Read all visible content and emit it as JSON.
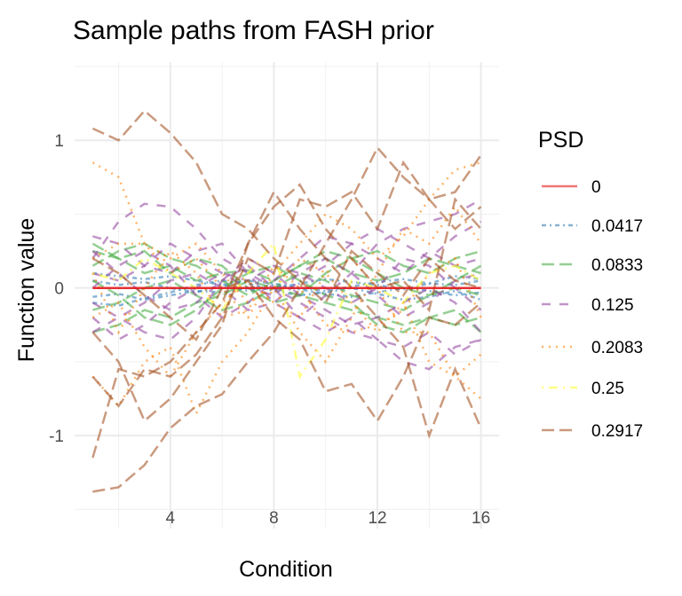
{
  "chart_data": {
    "type": "line",
    "title": "Sample paths from FASH prior",
    "xlabel": "Condition",
    "ylabel": "Function value",
    "xlim": [
      0.3,
      16.7
    ],
    "ylim": [
      -1.63,
      1.53
    ],
    "x_ticks": [
      4,
      8,
      12,
      16
    ],
    "x_tick_labels": [
      "4",
      "8",
      "12",
      "16"
    ],
    "y_ticks": [
      -1,
      0,
      1
    ],
    "y_tick_labels": [
      "-1",
      "0",
      "1"
    ],
    "grid": true,
    "x": [
      1,
      2,
      3,
      4,
      5,
      6,
      7,
      8,
      9,
      10,
      11,
      12,
      13,
      14,
      15,
      16
    ],
    "legend": {
      "title": "PSD",
      "placement": "right",
      "entries": [
        "0",
        "0.0417",
        "0.0833",
        "0.125",
        "0.2083",
        "0.25",
        "0.2917"
      ]
    },
    "colors": [
      "#E41A1C",
      "#377EB8",
      "#4DAF4A",
      "#984EA3",
      "#FF7F00",
      "#FFFF33",
      "#A65628"
    ],
    "dash_styles": [
      "solid",
      "dotted-dash",
      "long-dash",
      "dashed",
      "dotted",
      "dot-dash",
      "long-dash"
    ],
    "series": [
      {
        "name": "0",
        "paths": [
          [
            0,
            0,
            0,
            0,
            0,
            0,
            0,
            0,
            0,
            0,
            0,
            0,
            0,
            0,
            0,
            0
          ]
        ]
      },
      {
        "name": "0.0417",
        "paths": [
          [
            0.05,
            0.02,
            0.04,
            0.0,
            -0.03,
            0.02,
            0.05,
            0.03,
            0.0,
            -0.02,
            0.01,
            0.04,
            0.06,
            0.03,
            0.02,
            0.05
          ],
          [
            -0.06,
            -0.04,
            -0.08,
            -0.05,
            -0.02,
            -0.03,
            0.0,
            0.02,
            -0.01,
            -0.04,
            -0.06,
            -0.03,
            0.0,
            -0.02,
            -0.05,
            -0.03
          ],
          [
            0.1,
            0.08,
            0.06,
            0.08,
            0.05,
            0.02,
            -0.02,
            0.0,
            0.03,
            0.06,
            0.04,
            0.02,
            -0.01,
            0.03,
            0.08,
            0.06
          ],
          [
            -0.1,
            -0.12,
            -0.07,
            -0.03,
            0.02,
            0.05,
            0.03,
            -0.02,
            -0.05,
            -0.03,
            0.0,
            -0.04,
            -0.08,
            -0.06,
            -0.02,
            -0.08
          ]
        ]
      },
      {
        "name": "0.0833",
        "paths": [
          [
            0.25,
            0.2,
            0.1,
            0.15,
            0.05,
            0.1,
            0.12,
            0.05,
            0.15,
            0.2,
            0.1,
            0.05,
            0.1,
            0.2,
            0.15,
            0.1
          ],
          [
            -0.3,
            -0.25,
            -0.15,
            -0.2,
            -0.1,
            -0.05,
            0.05,
            0.0,
            -0.05,
            -0.1,
            -0.15,
            -0.2,
            -0.25,
            -0.2,
            -0.15,
            -0.3
          ],
          [
            0.15,
            0.25,
            0.3,
            0.2,
            0.15,
            0.05,
            -0.05,
            0.05,
            0.15,
            0.25,
            0.2,
            0.1,
            0.0,
            -0.05,
            0.05,
            0.15
          ],
          [
            -0.15,
            -0.1,
            0.0,
            0.05,
            -0.05,
            -0.15,
            -0.1,
            0.0,
            0.1,
            0.05,
            -0.05,
            -0.1,
            -0.15,
            -0.05,
            0.0,
            -0.05
          ],
          [
            0.05,
            -0.05,
            -0.2,
            -0.25,
            -0.15,
            0.0,
            0.1,
            0.15,
            0.05,
            -0.05,
            -0.1,
            -0.25,
            -0.3,
            -0.2,
            -0.25,
            -0.2
          ],
          [
            0.3,
            0.2,
            0.25,
            0.1,
            0.2,
            0.15,
            0.0,
            -0.1,
            -0.05,
            0.1,
            0.2,
            0.25,
            0.15,
            0.1,
            0.2,
            0.25
          ]
        ]
      },
      {
        "name": "0.125",
        "paths": [
          [
            0.2,
            0.45,
            0.57,
            0.55,
            0.4,
            0.2,
            0.1,
            0.0,
            -0.1,
            -0.2,
            -0.3,
            -0.35,
            -0.5,
            -0.55,
            -0.4,
            -0.35
          ],
          [
            0.35,
            0.3,
            0.15,
            0.1,
            0.25,
            0.3,
            0.1,
            -0.1,
            -0.2,
            -0.05,
            0.1,
            0.3,
            0.4,
            0.45,
            0.5,
            0.6
          ],
          [
            -0.3,
            -0.2,
            -0.3,
            -0.35,
            -0.2,
            0.05,
            0.15,
            0.0,
            -0.2,
            -0.3,
            -0.2,
            -0.35,
            -0.4,
            -0.3,
            -0.45,
            -0.35
          ],
          [
            0.0,
            0.15,
            0.25,
            0.15,
            -0.05,
            -0.2,
            -0.1,
            0.05,
            0.2,
            0.35,
            0.3,
            0.2,
            0.1,
            0.25,
            0.15,
            0.2
          ],
          [
            -0.1,
            -0.2,
            -0.1,
            0.05,
            0.1,
            0.0,
            -0.15,
            -0.1,
            0.05,
            0.15,
            0.3,
            0.4,
            0.3,
            0.2,
            0.35,
            0.45
          ],
          [
            0.25,
            0.1,
            -0.05,
            -0.15,
            -0.1,
            0.05,
            0.2,
            0.1,
            -0.05,
            -0.15,
            -0.25,
            -0.2,
            -0.1,
            0.0,
            -0.1,
            -0.3
          ],
          [
            -0.2,
            -0.35,
            -0.25,
            -0.1,
            0.0,
            0.1,
            0.05,
            0.15,
            0.1,
            0.0,
            -0.1,
            0.0,
            0.2,
            0.15,
            0.0,
            -0.15
          ],
          [
            0.1,
            0.05,
            0.15,
            0.3,
            0.2,
            0.1,
            0.0,
            -0.05,
            0.1,
            0.2,
            0.1,
            -0.05,
            -0.2,
            -0.1,
            0.05,
            0.1
          ]
        ]
      },
      {
        "name": "0.2083",
        "paths": [
          [
            0.85,
            0.75,
            0.3,
            0.1,
            0.2,
            0.0,
            -0.2,
            0.1,
            0.3,
            0.5,
            0.4,
            0.2,
            0.35,
            0.6,
            0.8,
            0.85
          ],
          [
            -0.6,
            -0.8,
            -0.5,
            -0.4,
            -0.85,
            -0.5,
            -0.3,
            0.0,
            0.2,
            0.1,
            -0.1,
            -0.3,
            -0.1,
            -0.5,
            -0.6,
            -0.45
          ],
          [
            0.2,
            0.3,
            0.3,
            0.2,
            0.3,
            0.1,
            -0.1,
            0.0,
            -0.3,
            -0.5,
            -0.2,
            0.1,
            0.4,
            0.3,
            0.55,
            0.3
          ],
          [
            -0.2,
            -0.1,
            -0.4,
            -0.6,
            -0.3,
            -0.1,
            0.05,
            -0.1,
            -0.2,
            0.1,
            0.2,
            0.0,
            -0.3,
            -0.3,
            -0.6,
            -0.75
          ],
          [
            0.1,
            -0.3,
            0.0,
            0.25,
            0.1,
            -0.2,
            -0.15,
            0.15,
            0.0,
            -0.25,
            -0.3,
            -0.25,
            -0.15,
            0.1,
            0.2,
            -0.2
          ]
        ]
      },
      {
        "name": "0.25",
        "paths": [
          [
            0.1,
            0.05,
            0.2,
            0.1,
            0.0,
            -0.15,
            0.1,
            0.3,
            -0.6,
            -0.35,
            0.05,
            0.0,
            -0.1,
            0.1,
            0.15,
            0.05
          ]
        ]
      },
      {
        "name": "0.2917",
        "paths": [
          [
            1.08,
            1.0,
            1.2,
            1.05,
            0.85,
            0.5,
            0.4,
            0.2,
            0.05,
            -0.1,
            0.25,
            0.1,
            -0.05,
            0.2,
            0.05,
            0.0
          ],
          [
            -1.38,
            -1.35,
            -1.2,
            -0.95,
            -0.8,
            -0.72,
            -0.5,
            -0.3,
            0.0,
            0.3,
            0.6,
            0.95,
            0.75,
            0.6,
            0.4,
            0.55
          ],
          [
            -1.15,
            -0.55,
            -0.6,
            -0.5,
            -0.3,
            -0.1,
            0.3,
            0.65,
            0.4,
            0.2,
            0.0,
            -0.2,
            -0.4,
            -1.0,
            -0.55,
            -0.95
          ],
          [
            -0.6,
            -0.8,
            -0.55,
            -0.6,
            -0.45,
            -0.2,
            0.2,
            0.1,
            0.6,
            0.55,
            0.65,
            0.4,
            0.85,
            0.6,
            0.65,
            0.9
          ],
          [
            0.2,
            0.1,
            -0.05,
            -0.2,
            -0.35,
            0.0,
            0.05,
            -0.2,
            -0.35,
            -0.7,
            -0.65,
            -0.9,
            -0.6,
            -0.2,
            -0.25,
            -0.1
          ],
          [
            -0.3,
            -0.5,
            -0.9,
            -0.75,
            -0.5,
            -0.25,
            0.3,
            0.55,
            0.7,
            0.4,
            0.2,
            0.0,
            0.05,
            -0.15,
            0.6,
            0.4
          ]
        ]
      }
    ]
  }
}
